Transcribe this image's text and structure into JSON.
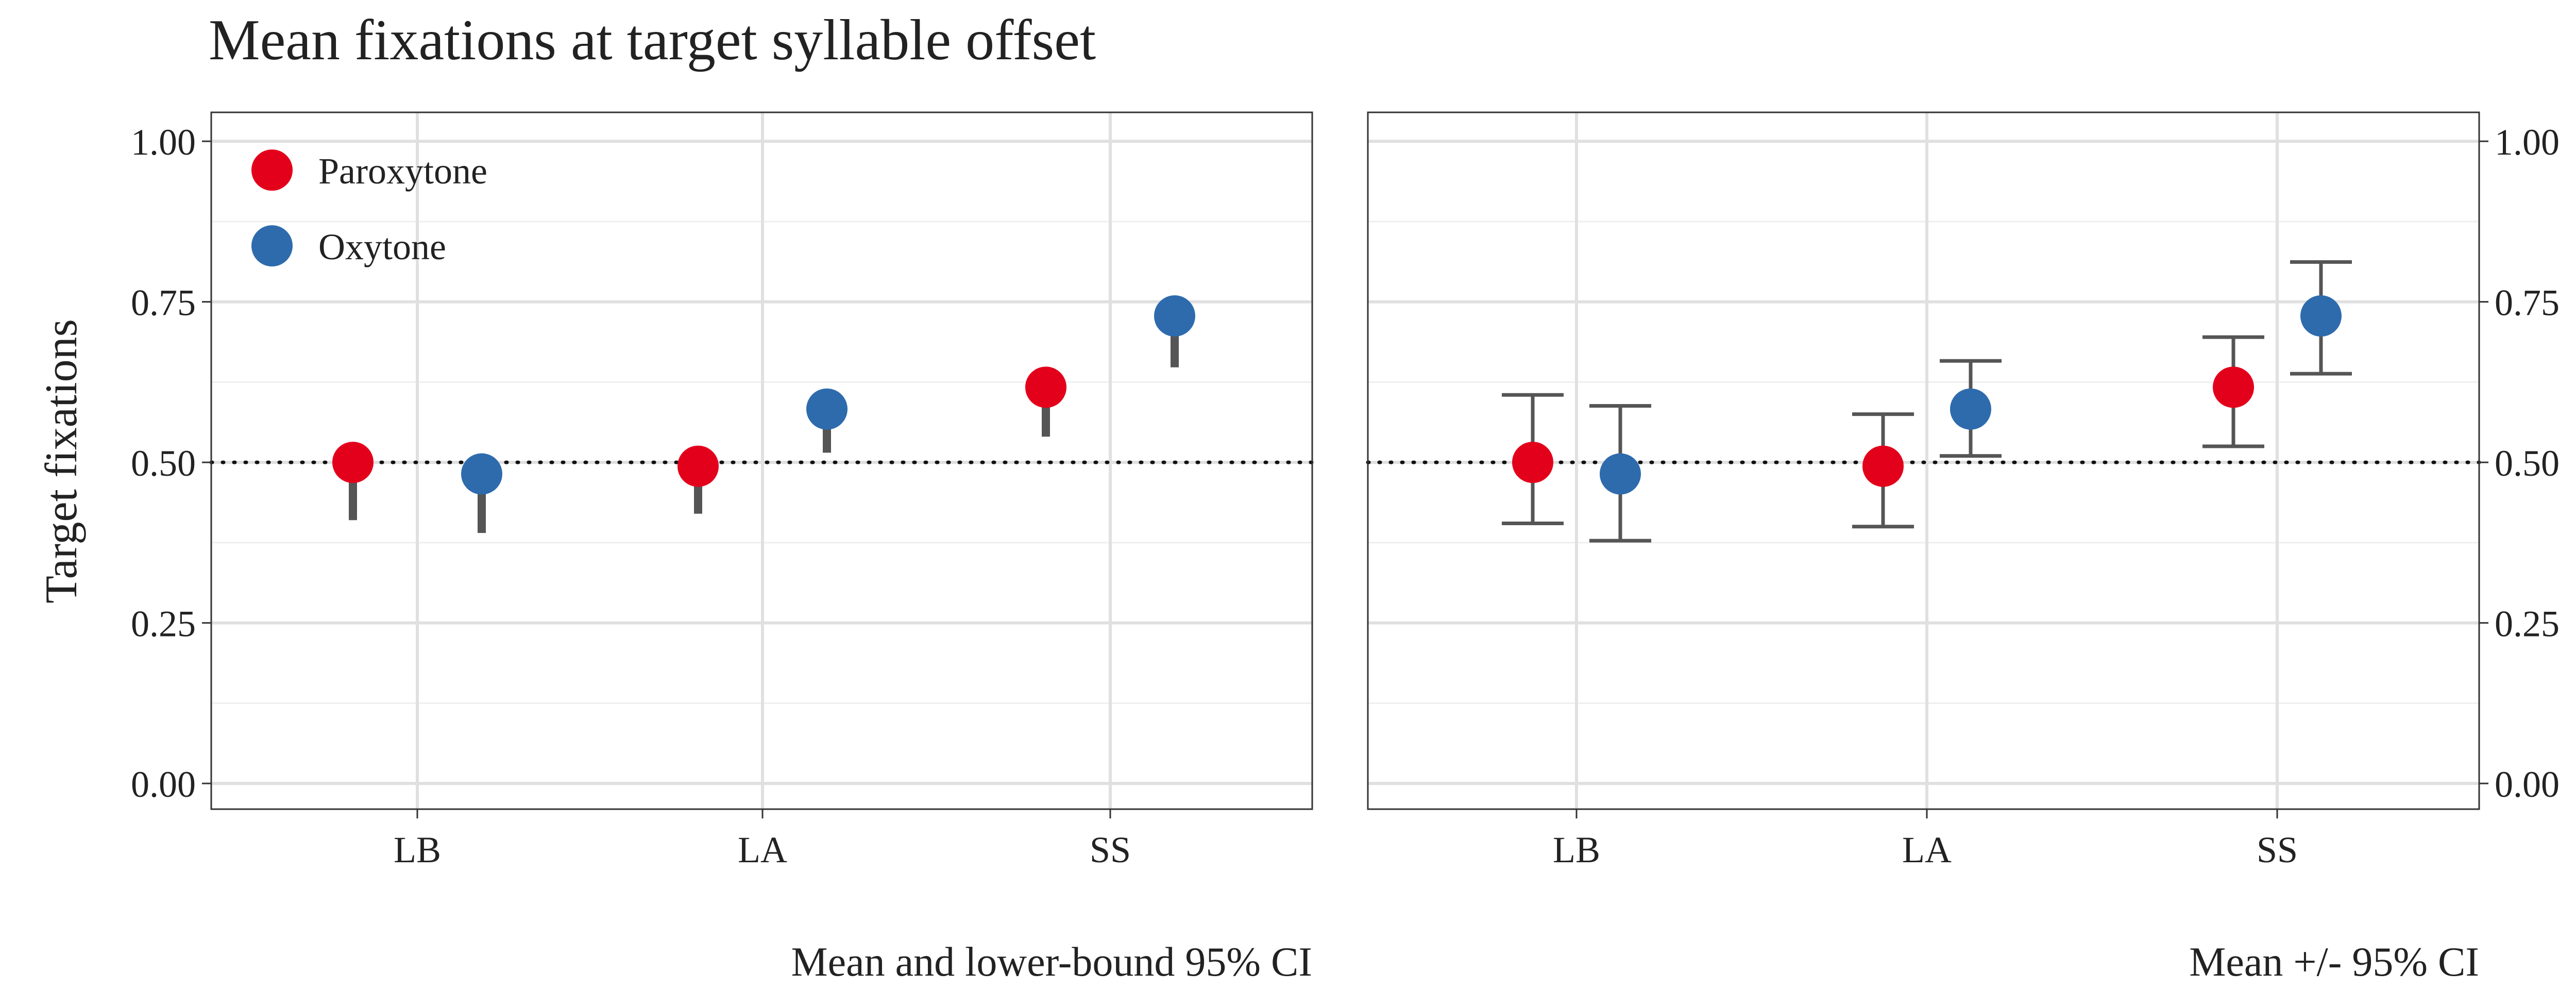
{
  "chart_data": {
    "type": "scatter",
    "title": "Mean fixations at target syllable offset",
    "ylabel": "Target fixations",
    "ylim": [
      -0.04,
      1.045
    ],
    "yticks": [
      "0.00",
      "0.25",
      "0.50",
      "0.75",
      "1.00"
    ],
    "yticks_values": [
      0,
      0.25,
      0.5,
      0.75,
      1.0
    ],
    "reference_line": 0.5,
    "categories": [
      "LB",
      "LA",
      "SS"
    ],
    "grid": true,
    "legend_position": "top-left",
    "colors": {
      "Paroxytone": "#E3001B",
      "Oxytone": "#2E6BAD",
      "error": "#555555"
    },
    "series": [
      {
        "name": "Paroxytone",
        "mean": [
          0.5,
          0.494,
          0.617
        ],
        "lower": [
          0.41,
          0.42,
          0.54
        ],
        "ci_low": [
          0.405,
          0.4,
          0.525
        ],
        "ci_high": [
          0.605,
          0.575,
          0.695
        ]
      },
      {
        "name": "Oxytone",
        "mean": [
          0.482,
          0.583,
          0.728
        ],
        "lower": [
          0.39,
          0.515,
          0.648
        ],
        "ci_low": [
          0.378,
          0.51,
          0.638
        ],
        "ci_high": [
          0.588,
          0.658,
          0.812
        ]
      }
    ],
    "panels": [
      {
        "xlabel": "Mean and lower-bound 95% CI",
        "style": "lower-bound"
      },
      {
        "xlabel": "Mean +/- 95% CI",
        "style": "ci"
      }
    ]
  }
}
